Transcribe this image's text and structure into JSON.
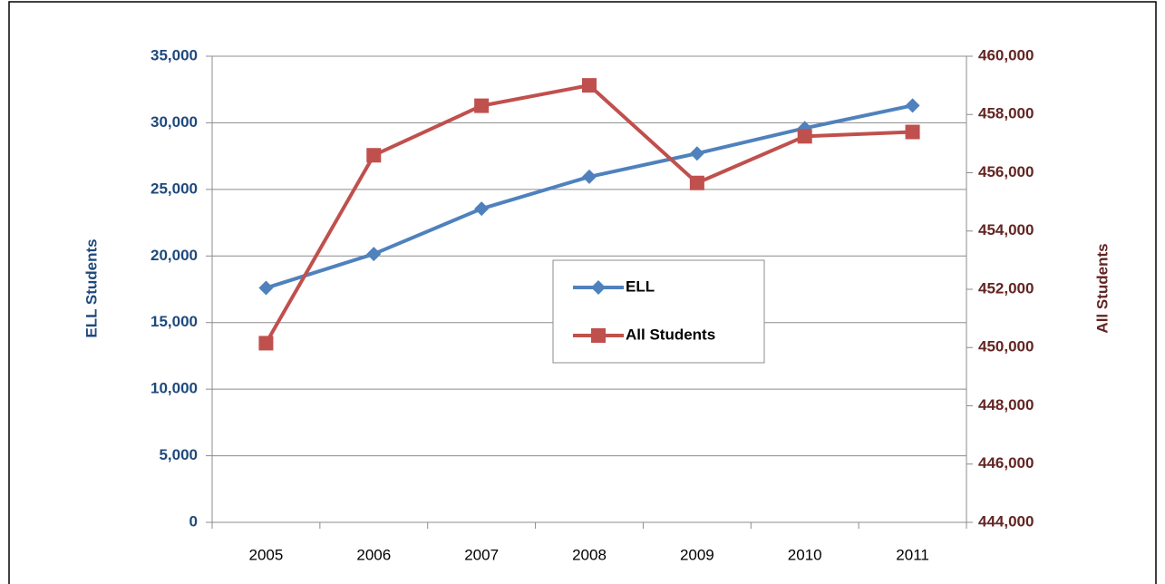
{
  "chart_data": {
    "type": "line",
    "categories": [
      "2005",
      "2006",
      "2007",
      "2008",
      "2009",
      "2010",
      "2011"
    ],
    "series": [
      {
        "name": "ELL",
        "color": "#4f81bd",
        "marker": "diamond",
        "values": [
          17600,
          20150,
          23550,
          25950,
          27700,
          29600,
          31300
        ]
      },
      {
        "name": "All Students",
        "color": "#c0504d",
        "marker": "square",
        "axis": "y2",
        "values": [
          450150,
          456600,
          458300,
          459000,
          455650,
          457250,
          457400
        ]
      }
    ],
    "ylabel": "ELL Students",
    "y2label": "All Students",
    "ylim": [
      0,
      35000
    ],
    "yticks": [
      0,
      {
        "value": 5000,
        "label": "5,000"
      },
      {
        "value": 10000,
        "label": "10,000"
      },
      {
        "value": 15000,
        "label": "15,000"
      },
      {
        "value": 20000,
        "label": "20,000"
      },
      {
        "value": 25000,
        "label": "25,000"
      },
      {
        "value": 30000,
        "label": "30,000"
      },
      {
        "value": 35000,
        "label": "35,000"
      }
    ],
    "y2lim": [
      444000,
      460000
    ],
    "y2ticks": [
      {
        "value": 444000,
        "label": "444,000"
      },
      {
        "value": 446000,
        "label": "446,000"
      },
      {
        "value": 448000,
        "label": "448,000"
      },
      {
        "value": 450000,
        "label": "450,000"
      },
      {
        "value": 452000,
        "label": "452,000"
      },
      {
        "value": 454000,
        "label": "454,000"
      },
      {
        "value": 456000,
        "label": "456,000"
      },
      {
        "value": 458000,
        "label": "458,000"
      },
      {
        "value": 460000,
        "label": "460,000"
      }
    ],
    "grid": true,
    "legend": "center"
  }
}
